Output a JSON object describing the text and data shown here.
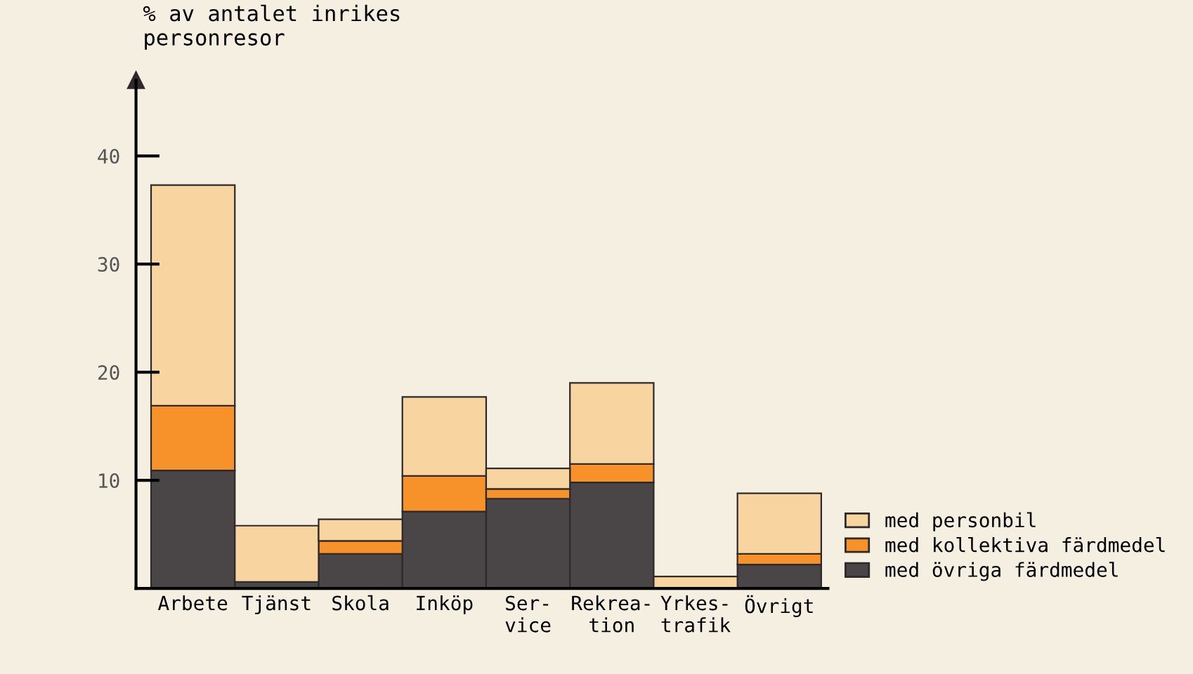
{
  "chart_data": {
    "type": "bar",
    "stacked": true,
    "ylabel": "% av antalet inrikes\npersonresor",
    "categories": [
      "Arbete",
      "Tjänst",
      "Skola",
      "Inköp",
      "Ser-\nvice",
      "Rekrea-\ntion",
      "Yrkes-\ntrafik",
      "Övrigt"
    ],
    "series": [
      {
        "name": "med övriga färdmedel",
        "color": "#4a4546",
        "values": [
          10.9,
          0.6,
          3.2,
          7.1,
          8.3,
          9.8,
          0,
          2.2
        ]
      },
      {
        "name": "med kollektiva färdmedel",
        "color": "#f7922a",
        "values": [
          6.0,
          0,
          1.2,
          3.3,
          0.9,
          1.7,
          0,
          1.0
        ]
      },
      {
        "name": "med personbil",
        "color": "#f8d4a0",
        "values": [
          20.4,
          5.2,
          2.0,
          7.3,
          1.9,
          7.5,
          1.1,
          5.6
        ]
      }
    ],
    "ylim": [
      0,
      47
    ],
    "yticks": [
      10,
      20,
      30,
      40
    ],
    "grid": false,
    "legend": "bottom right"
  }
}
